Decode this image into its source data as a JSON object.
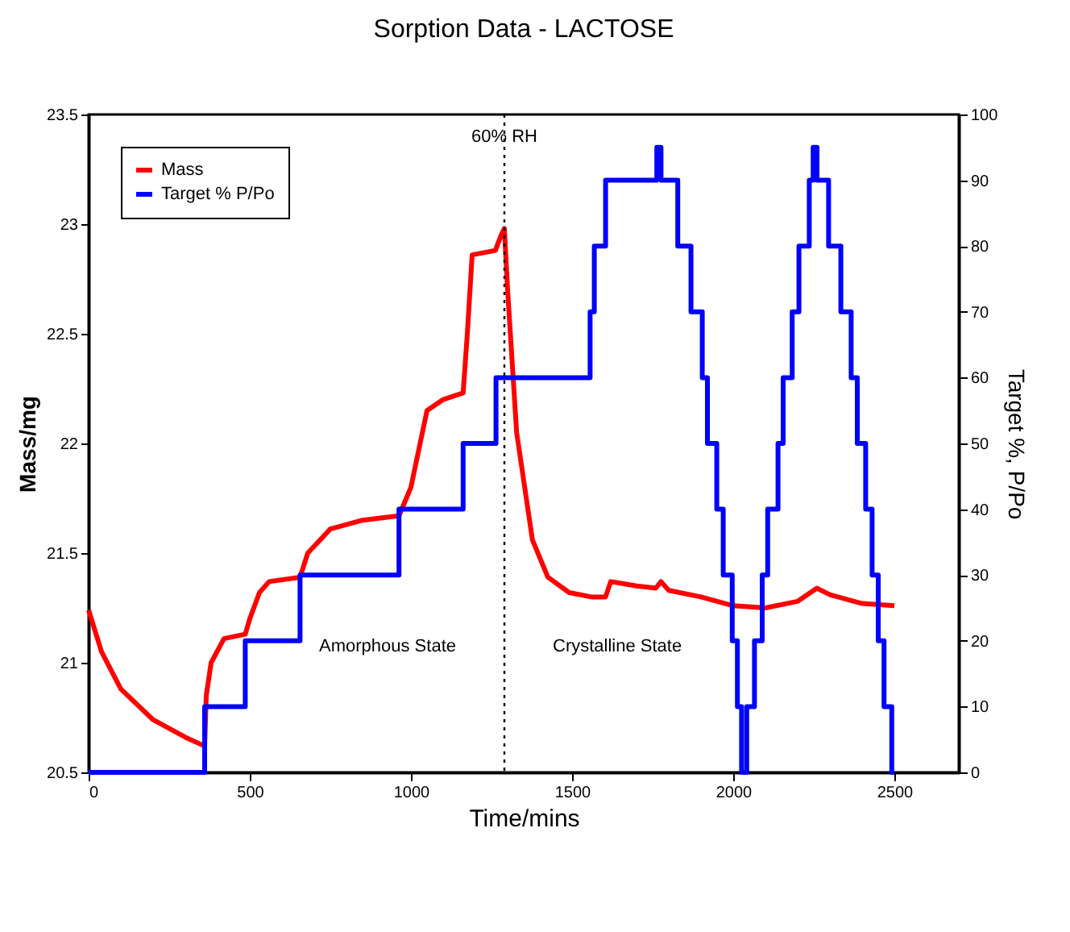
{
  "chart_data": {
    "type": "line",
    "title": "Sorption Data - LACTOSE",
    "xlabel": "Time/mins",
    "ylabel": "Mass/mg",
    "y2label": "Target %, P/Po",
    "xlim": [
      0,
      2700
    ],
    "xticks": [
      0,
      500,
      1000,
      1500,
      2000,
      2500
    ],
    "ylim": [
      20.5,
      23.5
    ],
    "yticks": [
      20.5,
      21,
      21.5,
      22,
      22.5,
      23,
      23.5
    ],
    "y2lim": [
      0,
      100
    ],
    "y2ticks": [
      0,
      10,
      20,
      30,
      40,
      50,
      60,
      70,
      80,
      90,
      100
    ],
    "grid": false,
    "legend": "top left",
    "marker": "none",
    "series": [
      {
        "name": "Mass",
        "color": "#ff0000",
        "x": [
          0,
          40,
          100,
          200,
          300,
          360,
          365,
          380,
          420,
          486,
          500,
          530,
          560,
          656,
          680,
          750,
          850,
          963,
          1000,
          1050,
          1100,
          1162,
          1175,
          1190,
          1262,
          1280,
          1290,
          1300,
          1328,
          1377,
          1425,
          1491,
          1560,
          1604,
          1620,
          1700,
          1760,
          1776,
          1800,
          1900,
          2000,
          2100,
          2200,
          2260,
          2300,
          2400,
          2500
        ],
        "values": [
          21.24,
          21.05,
          20.88,
          20.74,
          20.66,
          20.62,
          20.85,
          21.0,
          21.11,
          21.13,
          21.2,
          21.32,
          21.37,
          21.39,
          21.5,
          21.61,
          21.65,
          21.67,
          21.8,
          22.15,
          22.2,
          22.23,
          22.5,
          22.86,
          22.88,
          22.95,
          22.98,
          22.7,
          22.05,
          21.56,
          21.39,
          21.32,
          21.3,
          21.3,
          21.37,
          21.35,
          21.34,
          21.37,
          21.33,
          21.3,
          21.26,
          21.25,
          21.28,
          21.34,
          21.31,
          21.27,
          21.26
        ]
      },
      {
        "name": "Target % P/Po",
        "color": "#0000ff",
        "type": "step",
        "axis": "y2",
        "x": [
          0,
          360,
          486,
          656,
          963,
          1162,
          1264,
          1556,
          1569,
          1604,
          1763,
          1776,
          1828,
          1869,
          1904,
          1920,
          1949,
          1969,
          1997,
          2013,
          2026,
          2042,
          2066,
          2090,
          2107,
          2139,
          2155,
          2183,
          2204,
          2236,
          2248,
          2260,
          2296,
          2334,
          2366,
          2385,
          2411,
          2431,
          2450,
          2468,
          2492,
          2500
        ],
        "values": [
          0,
          10,
          20,
          30,
          40,
          50,
          60,
          70,
          80,
          90,
          95,
          90,
          80,
          70,
          60,
          50,
          40,
          30,
          20,
          10,
          0,
          10,
          20,
          30,
          40,
          50,
          60,
          70,
          80,
          90,
          95,
          90,
          80,
          70,
          60,
          50,
          40,
          30,
          20,
          10,
          0,
          0
        ]
      }
    ],
    "ref_lines": [
      {
        "axis": "x",
        "value": 1290,
        "label": "60% RH",
        "line_style": "dotted",
        "color": "#000000"
      }
    ],
    "annotations": [
      "Amorphous State",
      "Crystalline State"
    ]
  }
}
